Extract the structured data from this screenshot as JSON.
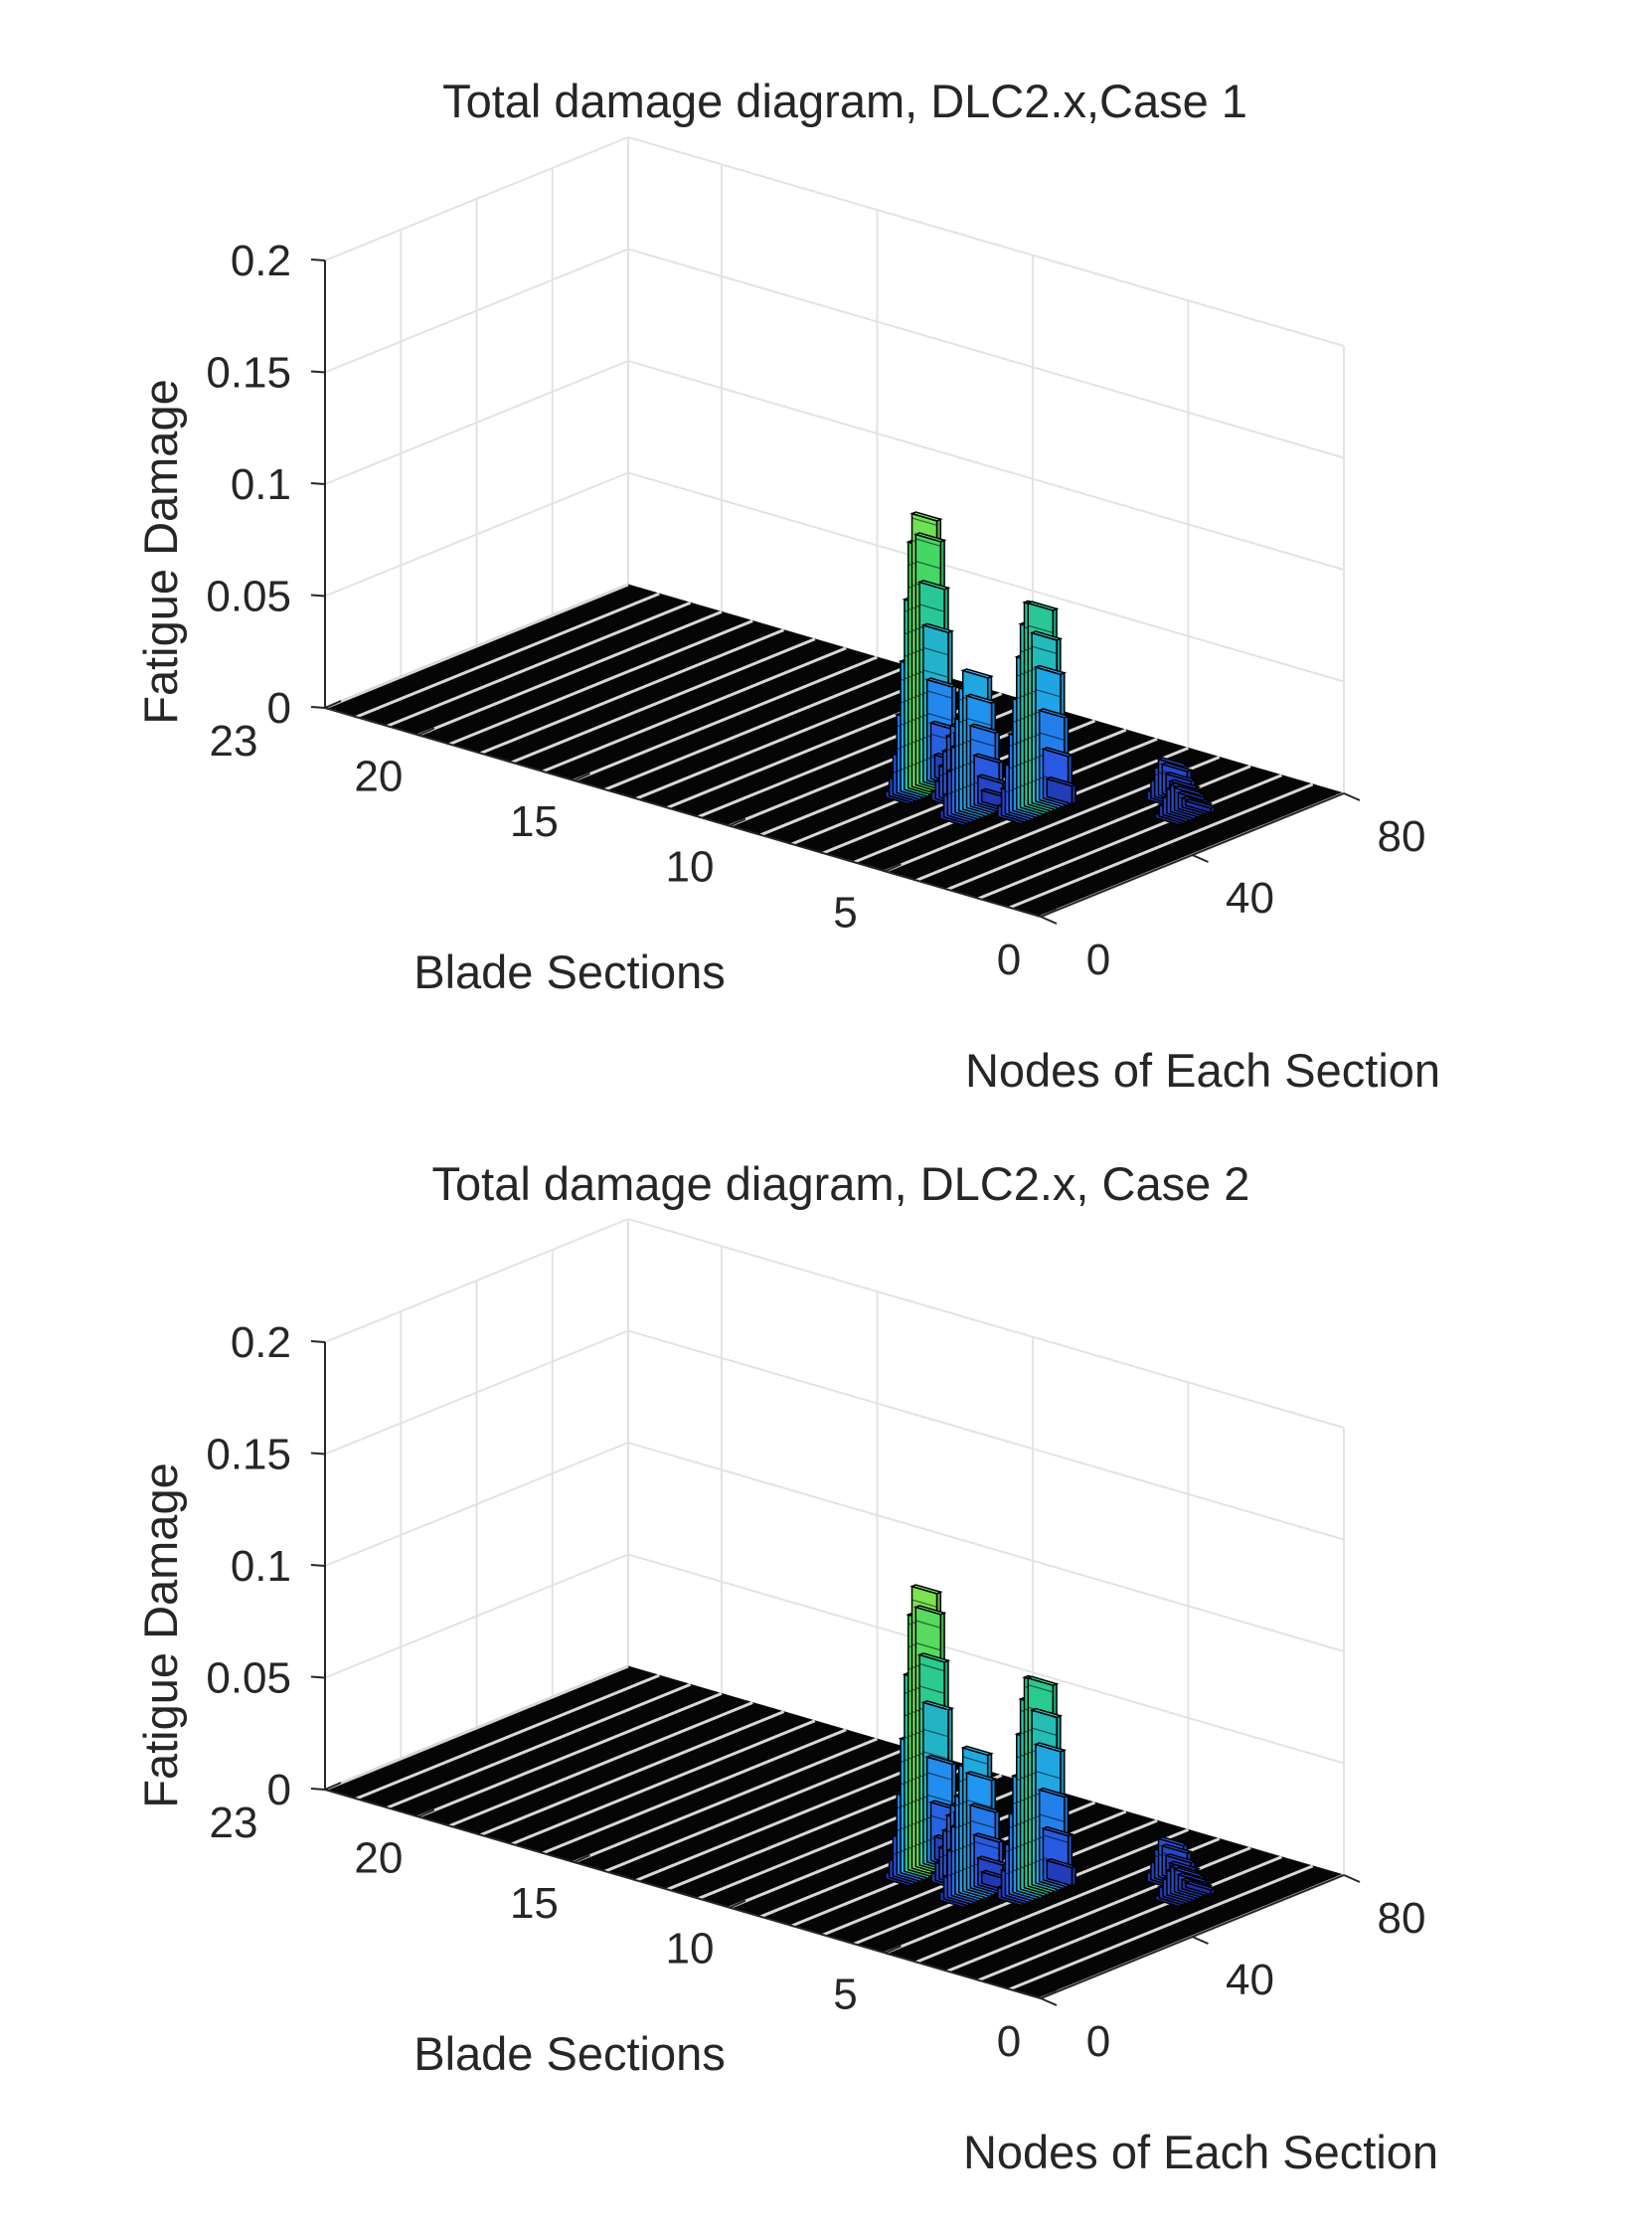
{
  "chart_data": [
    {
      "type": "bar3d",
      "title": "Total damage diagram, DLC2.x,Case 1",
      "xlabel": "Nodes of Each Section",
      "ylabel": "Blade Sections",
      "zlabel": "Fatigue Damage",
      "xlim": [
        0,
        80
      ],
      "ylim": [
        0,
        23
      ],
      "zlim": [
        0,
        0.2
      ],
      "x_ticks": [
        "0",
        "40",
        "80"
      ],
      "y_ticks": [
        "0",
        "5",
        "10",
        "15",
        "20",
        "23"
      ],
      "z_ticks": [
        "0",
        "0.05",
        "0.1",
        "0.15",
        "0.2"
      ],
      "series": [
        {
          "section": 8,
          "node_start": 28,
          "values": [
            0.003,
            0.008,
            0.018,
            0.035,
            0.058,
            0.085,
            0.11,
            0.122,
            0.112,
            0.09,
            0.07,
            0.045,
            0.025,
            0.01
          ]
        },
        {
          "section": 7,
          "node_start": 32,
          "values": [
            0.004,
            0.008,
            0.014,
            0.02,
            0.026,
            0.03,
            0.026,
            0.018,
            0.01,
            0.004
          ]
        },
        {
          "section": 6,
          "node_start": 26,
          "values": [
            0.004,
            0.01,
            0.02,
            0.03,
            0.042,
            0.055,
            0.062,
            0.05,
            0.036,
            0.022,
            0.012,
            0.005
          ]
        },
        {
          "section": 5,
          "node_start": 33,
          "values": [
            0.005,
            0.012,
            0.022,
            0.035,
            0.05,
            0.068,
            0.082,
            0.091,
            0.09,
            0.076,
            0.06,
            0.04,
            0.022,
            0.008
          ]
        },
        {
          "section": 3,
          "node_start": 56,
          "values": [
            0.004,
            0.008,
            0.013,
            0.016,
            0.013,
            0.008,
            0.004
          ]
        },
        {
          "section": 2,
          "node_start": 50,
          "values": [
            0.002,
            0.005,
            0.008,
            0.011,
            0.012,
            0.01,
            0.007,
            0.004,
            0.002
          ]
        }
      ]
    },
    {
      "type": "bar3d",
      "title": "Total damage diagram, DLC2.x, Case 2",
      "xlabel": "Nodes of Each Section",
      "ylabel": "Blade Sections",
      "zlabel": "Fatigue Damage",
      "xlim": [
        0,
        80
      ],
      "ylim": [
        0,
        23
      ],
      "zlim": [
        0,
        0.2
      ],
      "x_ticks": [
        "0",
        "40",
        "80"
      ],
      "y_ticks": [
        "0",
        "5",
        "10",
        "15",
        "20",
        "23"
      ],
      "z_ticks": [
        "0",
        "0.05",
        "0.1",
        "0.15",
        "0.2"
      ],
      "series": [
        {
          "section": 8,
          "node_start": 28,
          "values": [
            0.003,
            0.008,
            0.018,
            0.036,
            0.06,
            0.088,
            0.114,
            0.126,
            0.116,
            0.094,
            0.072,
            0.047,
            0.026,
            0.01
          ]
        },
        {
          "section": 7,
          "node_start": 32,
          "values": [
            0.004,
            0.008,
            0.014,
            0.021,
            0.027,
            0.031,
            0.027,
            0.019,
            0.01,
            0.004
          ]
        },
        {
          "section": 6,
          "node_start": 26,
          "values": [
            0.004,
            0.01,
            0.021,
            0.031,
            0.044,
            0.057,
            0.064,
            0.052,
            0.037,
            0.023,
            0.012,
            0.005
          ]
        },
        {
          "section": 5,
          "node_start": 33,
          "values": [
            0.005,
            0.012,
            0.023,
            0.036,
            0.052,
            0.07,
            0.085,
            0.094,
            0.093,
            0.078,
            0.062,
            0.041,
            0.023,
            0.008
          ]
        },
        {
          "section": 3,
          "node_start": 56,
          "values": [
            0.004,
            0.008,
            0.013,
            0.017,
            0.013,
            0.008,
            0.004
          ]
        },
        {
          "section": 2,
          "node_start": 50,
          "values": [
            0.002,
            0.005,
            0.008,
            0.011,
            0.012,
            0.01,
            0.007,
            0.004,
            0.002
          ]
        }
      ]
    }
  ]
}
